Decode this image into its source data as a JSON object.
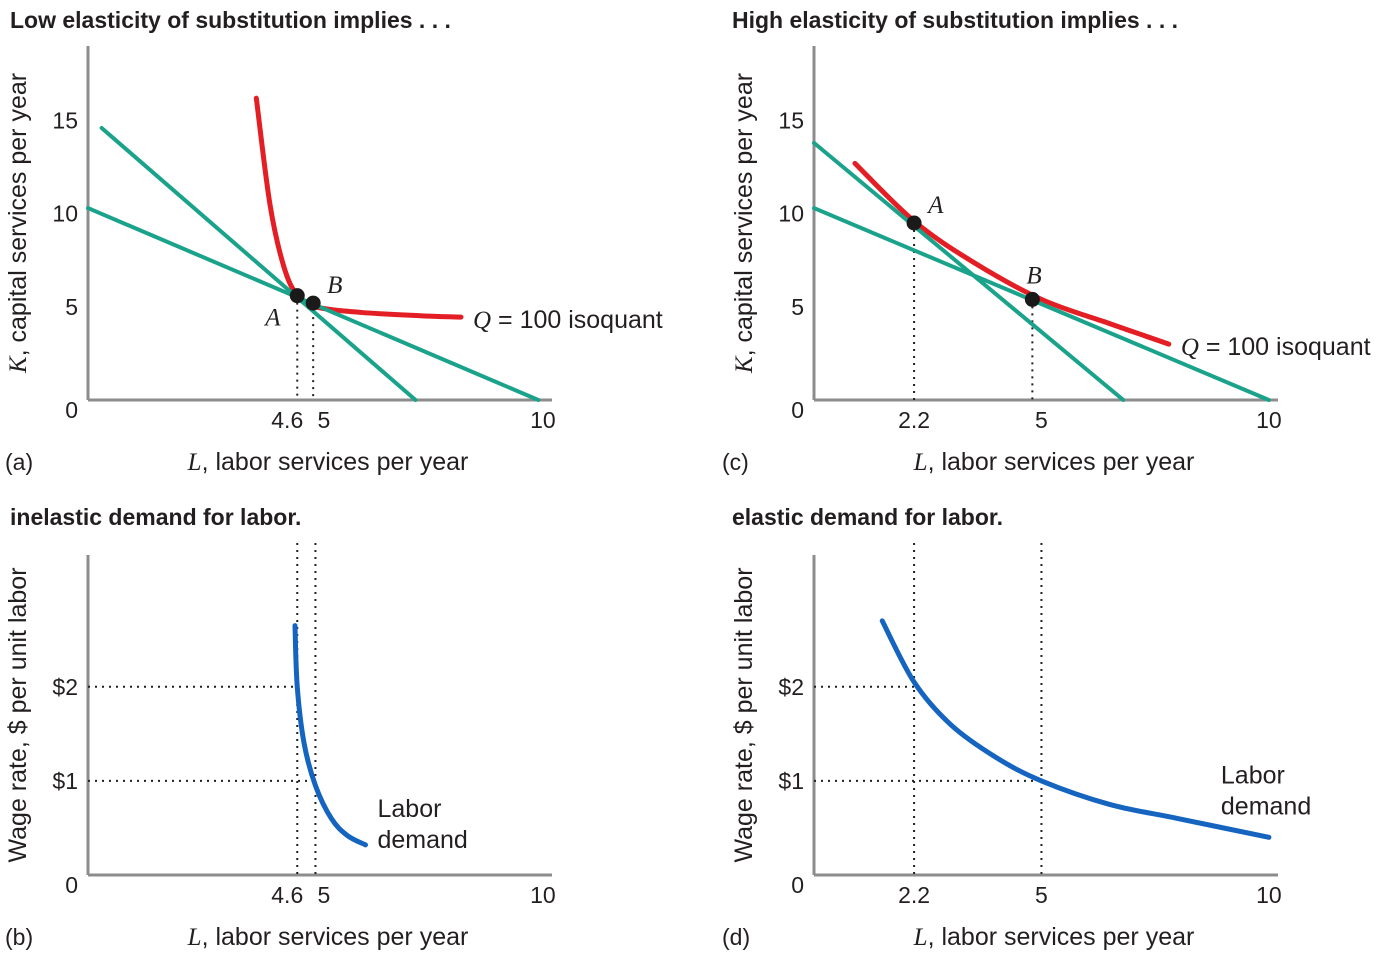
{
  "colors": {
    "isoquant": "#e31e24",
    "isocost": "#1aa38a",
    "demand": "#1565c0",
    "axis": "#8c8c8c",
    "text": "#231f20"
  },
  "chart_data": [
    {
      "id": "a",
      "type": "line",
      "title": "Low elasticity of substitution implies . . .",
      "panel_tag": "(a)",
      "xlabel_var": "L",
      "xlabel": ", labor services per year",
      "ylabel_var": "K",
      "ylabel": ", capital services per year",
      "origin_label": "0",
      "xlim": [
        0,
        10.2
      ],
      "ylim": [
        0,
        19
      ],
      "x_ticks": [
        {
          "value": 4.6,
          "label": "4.6"
        },
        {
          "value": 5,
          "label": "5"
        },
        {
          "value": 10,
          "label": "10"
        }
      ],
      "y_ticks": [
        {
          "value": 5,
          "label": "5"
        },
        {
          "value": 10,
          "label": "10"
        },
        {
          "value": 15,
          "label": "15"
        }
      ],
      "series": [
        {
          "kind": "isoquant",
          "label_var": "Q",
          "label": " = 100 isoquant",
          "points": [
            [
              3.7,
              16.2
            ],
            [
              4.0,
              10.5
            ],
            [
              4.3,
              7.2
            ],
            [
              4.6,
              5.6
            ],
            [
              5.0,
              5.0
            ],
            [
              6.0,
              4.7
            ],
            [
              7.5,
              4.5
            ],
            [
              8.2,
              4.45
            ]
          ]
        },
        {
          "kind": "isocost",
          "points": [
            [
              0.3,
              14.6
            ],
            [
              7.2,
              0
            ]
          ]
        },
        {
          "kind": "isocost",
          "points": [
            [
              0,
              10.3
            ],
            [
              9.9,
              0
            ]
          ]
        }
      ],
      "points": [
        {
          "label": "A",
          "x": 4.6,
          "y": 5.6,
          "label_side": "below-left"
        },
        {
          "label": "B",
          "x": 4.95,
          "y": 5.2,
          "label_side": "above-right"
        }
      ]
    },
    {
      "id": "c",
      "type": "line",
      "title": "High elasticity of substitution implies . . .",
      "panel_tag": "(c)",
      "xlabel_var": "L",
      "xlabel": ", labor services per year",
      "ylabel_var": "K",
      "ylabel": ", capital services per year",
      "origin_label": "0",
      "xlim": [
        0,
        10.2
      ],
      "ylim": [
        0,
        19
      ],
      "x_ticks": [
        {
          "value": 2.2,
          "label": "2.2"
        },
        {
          "value": 5,
          "label": "5"
        },
        {
          "value": 10,
          "label": "10"
        }
      ],
      "y_ticks": [
        {
          "value": 5,
          "label": "5"
        },
        {
          "value": 10,
          "label": "10"
        },
        {
          "value": 15,
          "label": "15"
        }
      ],
      "series": [
        {
          "kind": "isoquant",
          "label_var": "Q",
          "label": " = 100 isoquant",
          "points": [
            [
              0.9,
              12.7
            ],
            [
              2.2,
              9.6
            ],
            [
              3.5,
              7.4
            ],
            [
              5.0,
              5.4
            ],
            [
              6.5,
              4.1
            ],
            [
              7.8,
              3.0
            ]
          ]
        },
        {
          "kind": "isocost",
          "points": [
            [
              0,
              13.8
            ],
            [
              6.8,
              0
            ]
          ]
        },
        {
          "kind": "isocost",
          "points": [
            [
              0,
              10.3
            ],
            [
              10.0,
              0
            ]
          ]
        }
      ],
      "points": [
        {
          "label": "A",
          "x": 2.2,
          "y": 9.5,
          "label_side": "above-right"
        },
        {
          "label": "B",
          "x": 4.8,
          "y": 5.4,
          "label_side": "above"
        }
      ]
    },
    {
      "id": "b",
      "type": "line",
      "title": "inelastic demand for labor.",
      "panel_tag": "(b)",
      "xlabel_var": "L",
      "xlabel": ", labor services per year",
      "ylabel": "Wage rate, $ per unit labor",
      "origin_label": "0",
      "xlim": [
        0,
        10.2
      ],
      "ylim": [
        0,
        3.4
      ],
      "x_ticks": [
        {
          "value": 4.6,
          "label": "4.6"
        },
        {
          "value": 5,
          "label": "5"
        },
        {
          "value": 10,
          "label": "10"
        }
      ],
      "y_ticks": [
        {
          "value": 1,
          "label": "$1"
        },
        {
          "value": 2,
          "label": "$2"
        }
      ],
      "series": [
        {
          "kind": "demand",
          "label_line1": "Labor",
          "label_line2": "demand",
          "points": [
            [
              4.55,
              2.65
            ],
            [
              4.6,
              2.0
            ],
            [
              4.75,
              1.4
            ],
            [
              5.0,
              0.95
            ],
            [
              5.35,
              0.6
            ],
            [
              5.7,
              0.42
            ],
            [
              6.1,
              0.32
            ]
          ]
        }
      ],
      "guides": [
        {
          "x": 4.6,
          "y": 2
        },
        {
          "x": 5,
          "y": 1
        }
      ]
    },
    {
      "id": "d",
      "type": "line",
      "title": "elastic demand for labor.",
      "panel_tag": "(d)",
      "xlabel_var": "L",
      "xlabel": ", labor services per year",
      "ylabel": "Wage rate, $ per unit labor",
      "origin_label": "0",
      "xlim": [
        0,
        10.2
      ],
      "ylim": [
        0,
        3.4
      ],
      "x_ticks": [
        {
          "value": 2.2,
          "label": "2.2"
        },
        {
          "value": 5,
          "label": "5"
        },
        {
          "value": 10,
          "label": "10"
        }
      ],
      "y_ticks": [
        {
          "value": 1,
          "label": "$1"
        },
        {
          "value": 2,
          "label": "$2"
        }
      ],
      "series": [
        {
          "kind": "demand",
          "label_line1": "Labor",
          "label_line2": "demand",
          "points": [
            [
              1.5,
              2.7
            ],
            [
              2.2,
              2.05
            ],
            [
              3.0,
              1.6
            ],
            [
              4.0,
              1.25
            ],
            [
              5.0,
              1.0
            ],
            [
              6.5,
              0.75
            ],
            [
              8.0,
              0.6
            ],
            [
              10.0,
              0.4
            ]
          ]
        }
      ],
      "guides": [
        {
          "x": 2.2,
          "y": 2
        },
        {
          "x": 5,
          "y": 1
        }
      ]
    }
  ]
}
